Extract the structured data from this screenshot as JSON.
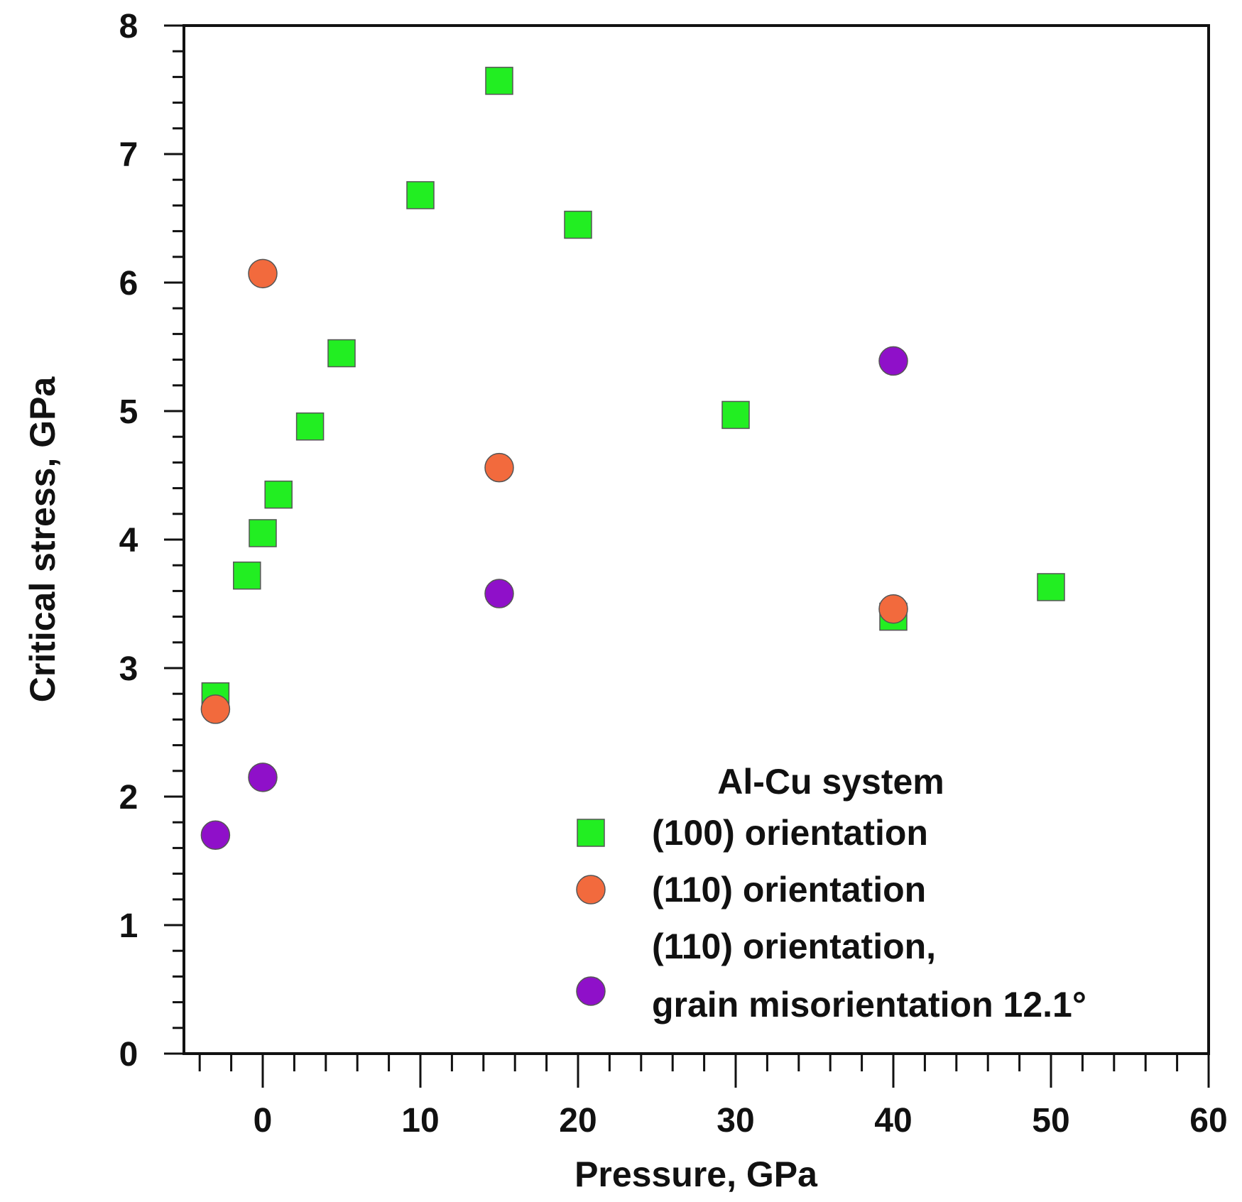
{
  "chart_data": {
    "type": "scatter",
    "title": "",
    "xlabel": "Pressure, GPa",
    "ylabel": "Critical stress, GPa",
    "xlim": [
      -5,
      60
    ],
    "ylim": [
      0,
      8
    ],
    "x_ticks": [
      0,
      10,
      20,
      30,
      40,
      50,
      60
    ],
    "x_tick_labels": [
      "0",
      "10",
      "20",
      "30",
      "40",
      "50",
      "60"
    ],
    "x_minor_step": 2,
    "y_ticks": [
      0,
      1,
      2,
      3,
      4,
      5,
      6,
      7,
      8
    ],
    "y_tick_labels": [
      "0",
      "1",
      "2",
      "3",
      "4",
      "5",
      "6",
      "7",
      "8"
    ],
    "y_minor_step": 0.2,
    "grid": false,
    "legend": {
      "placement": "bottom-right",
      "title": "Al-Cu system",
      "entries": [
        {
          "series": 0,
          "lines": [
            "(100) orientation"
          ]
        },
        {
          "series": 1,
          "lines": [
            "(110) orientation"
          ]
        },
        {
          "series": 2,
          "lines": [
            "(110) orientation,",
            "grain misorientation 12.1°"
          ]
        }
      ]
    },
    "series": [
      {
        "name": "(100) orientation",
        "marker": "square",
        "color": "#22ee22",
        "points": [
          {
            "x": -3,
            "y": 2.78
          },
          {
            "x": -1,
            "y": 3.72
          },
          {
            "x": 0,
            "y": 4.05
          },
          {
            "x": 1,
            "y": 4.35
          },
          {
            "x": 3,
            "y": 4.88
          },
          {
            "x": 5,
            "y": 5.45
          },
          {
            "x": 10,
            "y": 6.68
          },
          {
            "x": 15,
            "y": 7.57
          },
          {
            "x": 20,
            "y": 6.45
          },
          {
            "x": 30,
            "y": 4.97
          },
          {
            "x": 40,
            "y": 3.4
          },
          {
            "x": 50,
            "y": 3.63
          }
        ]
      },
      {
        "name": "(110) orientation",
        "marker": "circle",
        "color": "#f26a3d",
        "points": [
          {
            "x": -3,
            "y": 2.68
          },
          {
            "x": 0,
            "y": 6.07
          },
          {
            "x": 15,
            "y": 4.56
          },
          {
            "x": 40,
            "y": 3.46
          }
        ]
      },
      {
        "name": "(110) orientation, grain misorientation 12.1°",
        "marker": "circle",
        "color": "#8f10c9",
        "points": [
          {
            "x": -3,
            "y": 1.7
          },
          {
            "x": 0,
            "y": 2.15
          },
          {
            "x": 15,
            "y": 3.58
          },
          {
            "x": 40,
            "y": 5.39
          }
        ]
      }
    ]
  }
}
